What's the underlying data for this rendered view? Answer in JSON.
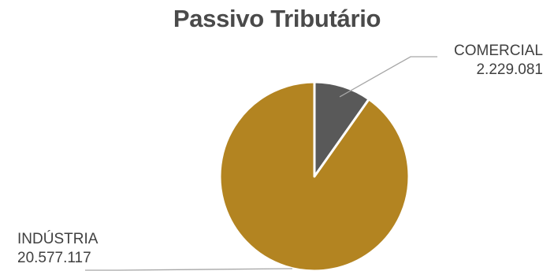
{
  "chart_data": {
    "type": "pie",
    "title": "Passivo Tributário",
    "slices": [
      {
        "label": "COMERCIAL",
        "value_label": "2.229.081",
        "value": 2229081,
        "color": "#595959"
      },
      {
        "label": "INDÚSTRIA",
        "value_label": "20.577.117",
        "value": 20577117,
        "color": "#b38421"
      }
    ],
    "legend": "none",
    "data_labels": "outside-with-leader-lines",
    "start_angle": "12 o'clock, clockwise"
  }
}
